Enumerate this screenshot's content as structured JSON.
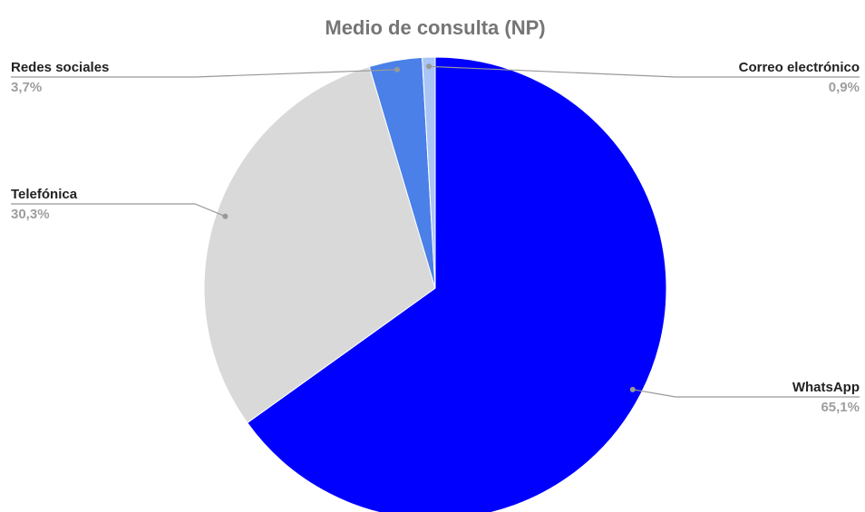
{
  "chart_data": {
    "type": "pie",
    "title": "Medio de consulta (NP)",
    "categories": [
      "WhatsApp",
      "Telefónica",
      "Redes sociales",
      "Correo electrónico"
    ],
    "values": [
      65.1,
      30.3,
      3.7,
      0.9
    ],
    "value_labels": [
      "65,1%",
      "30,3%",
      "3,7%",
      "0,9%"
    ],
    "colors": [
      "#0000ff",
      "#d9d9d9",
      "#4a80e8",
      "#a9c5f5"
    ]
  }
}
